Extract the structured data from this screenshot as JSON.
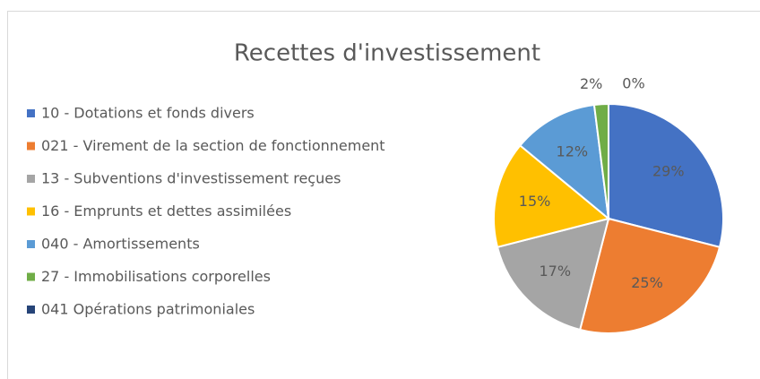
{
  "chart_data": {
    "type": "pie",
    "title": "Recettes d'investissement",
    "categories": [
      "10 - Dotations et fonds divers",
      "021 - Virement de la section de fonctionnement",
      "13 - Subventions d'investissement reçues",
      "16 - Emprunts et dettes assimilées",
      "040 - Amortissements",
      "27 - Immobilisations corporelles",
      "041 Opérations patrimoniales"
    ],
    "values": [
      29,
      25,
      17,
      15,
      12,
      2,
      0
    ],
    "value_labels": [
      "29%",
      "25%",
      "17%",
      "15%",
      "12%",
      "2%",
      "0%"
    ],
    "colors": [
      "#4472c4",
      "#ed7d31",
      "#a5a5a5",
      "#ffc000",
      "#5b9bd5",
      "#70ad47",
      "#264478"
    ],
    "legend": "left"
  }
}
